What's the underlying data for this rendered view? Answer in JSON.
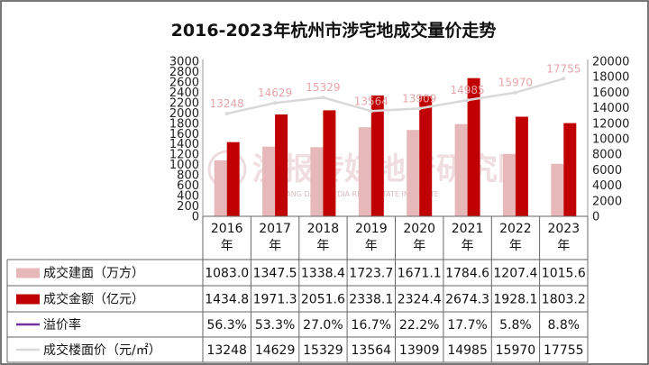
{
  "chart_data": {
    "type": "bar",
    "title": "2016-2023年杭州市涉宅地成交量价走势",
    "categories": [
      "2016年",
      "2017年",
      "2018年",
      "2019年",
      "2020年",
      "2021年",
      "2022年",
      "2023年"
    ],
    "series": [
      {
        "name": "成交建面（万方）",
        "axis": "left",
        "kind": "bar",
        "color": "#e6b8b9",
        "values": [
          1083.0,
          1347.5,
          1338.4,
          1723.7,
          1671.1,
          1784.6,
          1207.4,
          1015.6
        ],
        "display": [
          "1083.0",
          "1347.5",
          "1338.4",
          "1723.7",
          "1671.1",
          "1784.6",
          "1207.4",
          "1015.6"
        ]
      },
      {
        "name": "成交金额（亿元）",
        "axis": "left",
        "kind": "bar",
        "color": "#c00000",
        "values": [
          1434.8,
          1971.3,
          2051.6,
          2338.1,
          2324.4,
          2674.3,
          1928.1,
          1803.2
        ],
        "display": [
          "1434.8",
          "1971.3",
          "2051.6",
          "2338.1",
          "2324.4",
          "2674.3",
          "1928.1",
          "1803.2"
        ]
      },
      {
        "name": "溢价率",
        "axis": "none",
        "kind": "table",
        "color": "#7030a0",
        "values": [
          56.3,
          53.3,
          27.0,
          16.7,
          22.2,
          17.7,
          5.8,
          8.8
        ],
        "display": [
          "56.3%",
          "53.3%",
          "27.0%",
          "16.7%",
          "22.2%",
          "17.7%",
          "5.8%",
          "8.8%"
        ]
      },
      {
        "name": "成交楼面价（元/㎡）",
        "axis": "right",
        "kind": "line",
        "color": "#d9d9d9",
        "values": [
          13248,
          14629,
          15329,
          13564,
          13909,
          14985,
          15970,
          17755
        ],
        "display": [
          "13248",
          "14629",
          "15329",
          "13564",
          "13909",
          "14985",
          "15970",
          "17755"
        ]
      }
    ],
    "y_left": {
      "min": 0,
      "max": 3000,
      "ticks": [
        "0",
        "200",
        "400",
        "600",
        "800",
        "1000",
        "1200",
        "1400",
        "1600",
        "1800",
        "2000",
        "2200",
        "2400",
        "2600",
        "2800",
        "3000"
      ]
    },
    "y_right": {
      "min": 0,
      "max": 20000,
      "ticks": [
        "0",
        "2000",
        "4000",
        "6000",
        "8000",
        "10000",
        "12000",
        "14000",
        "16000",
        "18000",
        "20000"
      ]
    },
    "grid": false,
    "legend": "data-table"
  },
  "watermark": {
    "main": "浙报传媒地产研究院",
    "sub": "ZHEJIANG DAILY MEDIA REAL ESTATE INSTITUTE"
  }
}
